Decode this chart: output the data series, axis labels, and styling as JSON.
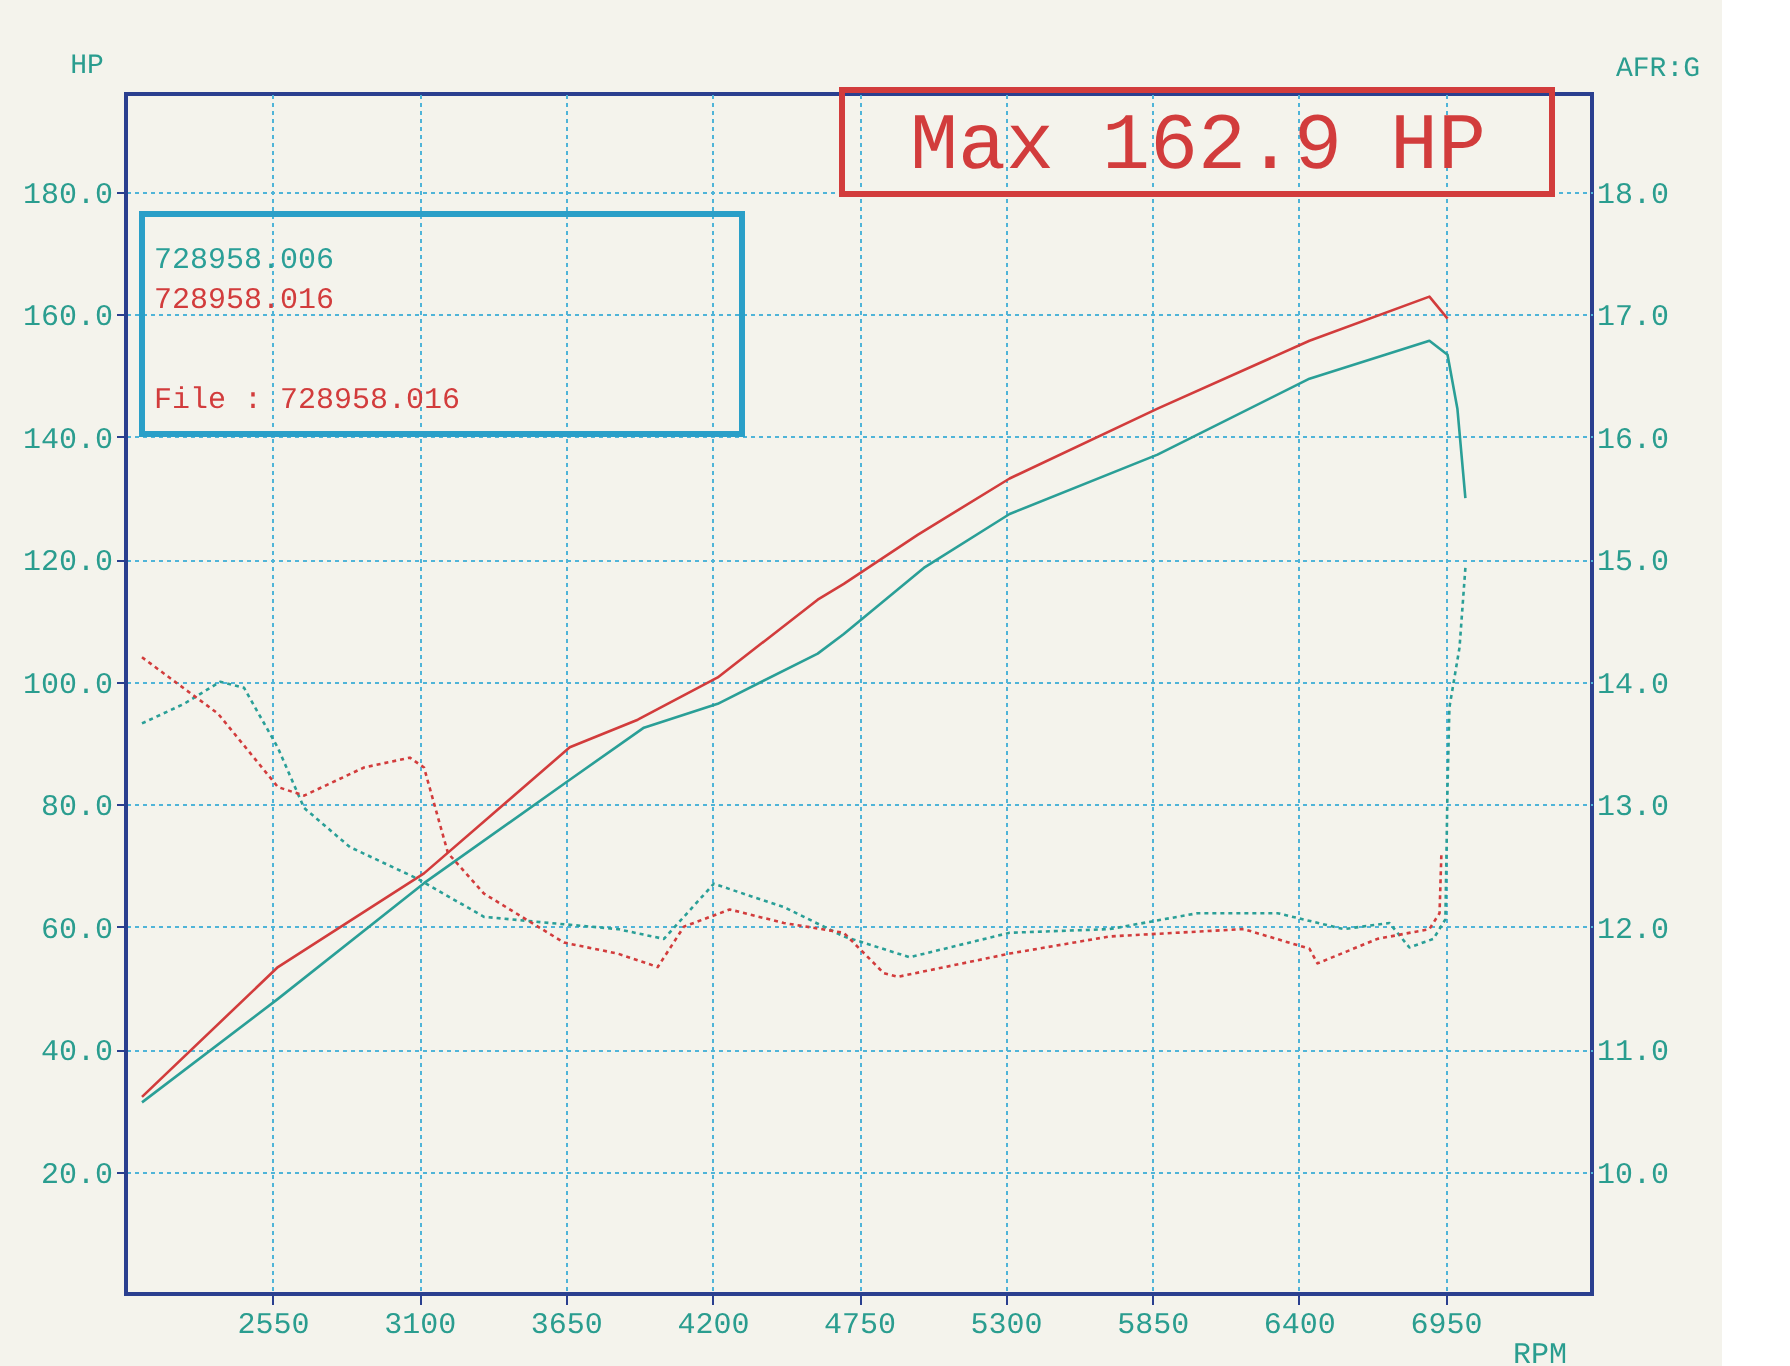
{
  "chart_data": {
    "type": "line",
    "xlabel": "RPM",
    "ylabel": "HP",
    "y2label": "AFR:G",
    "xlim": [
      2000,
      7500
    ],
    "xticks": [
      2550,
      3100,
      3650,
      4200,
      4750,
      5300,
      5850,
      6400,
      6950
    ],
    "ylim": [
      0,
      196
    ],
    "yticks": [
      {
        "value": 20,
        "label": "20.0"
      },
      {
        "value": 40,
        "label": "40.0"
      },
      {
        "value": 60,
        "label": "60.0"
      },
      {
        "value": 80,
        "label": "80.0"
      },
      {
        "value": 100,
        "label": "100.0"
      },
      {
        "value": 120,
        "label": "120.0"
      },
      {
        "value": 140,
        "label": "140.0"
      },
      {
        "value": 160,
        "label": "160.0"
      },
      {
        "value": 180,
        "label": "180.0"
      }
    ],
    "y2lim": [
      9,
      18.8
    ],
    "y2ticks": [
      {
        "value": 10,
        "label": "10.0"
      },
      {
        "value": 11,
        "label": "11.0"
      },
      {
        "value": 12,
        "label": "12.0"
      },
      {
        "value": 13,
        "label": "13.0"
      },
      {
        "value": 14,
        "label": "14.0"
      },
      {
        "value": 15,
        "label": "15.0"
      },
      {
        "value": 16,
        "label": "16.0"
      },
      {
        "value": 17,
        "label": "17.0"
      },
      {
        "value": 18,
        "label": "18.0"
      }
    ],
    "grid": true,
    "legend": "top left",
    "marker": "none",
    "annotations": [
      "Max 162.9 HP",
      "File      : 728958.016"
    ],
    "series": [
      {
        "name": "728958.006",
        "color": "#2a9f97",
        "line_style": "solid",
        "x": [
          2060,
          2570,
          3118,
          3665,
          3943,
          4220,
          4595,
          4693,
          4993,
          5315,
          5870,
          6440,
          6890,
          6958,
          6995,
          7025
        ],
        "values": [
          31.3,
          48.2,
          67.1,
          84,
          92.5,
          96.4,
          104.6,
          107.8,
          118.6,
          127.4,
          137.1,
          149.5,
          155.7,
          153.4,
          144.6,
          130
        ]
      },
      {
        "name": "728958.016",
        "color": "#d23c3c",
        "line_style": "solid",
        "x": [
          2060,
          2570,
          3118,
          3665,
          3920,
          4220,
          4595,
          4693,
          4970,
          5315,
          5870,
          6440,
          6890,
          6958
        ],
        "values": [
          32.2,
          53.4,
          68.7,
          89.3,
          93.8,
          100.7,
          113.4,
          116,
          124,
          133.2,
          144.6,
          155.7,
          162.9,
          159.3
        ]
      },
      {
        "color": "#2a9f97",
        "line_style": "dotted",
        "axis": "y2",
        "x": [
          2060,
          2218,
          2353,
          2443,
          2570,
          2668,
          2840,
          3095,
          3343,
          3590,
          3845,
          4018,
          4205,
          4468,
          4693,
          4940,
          5315,
          5690,
          6020,
          6320,
          6568,
          6740,
          6815,
          6905,
          6950,
          6958,
          6965,
          7003,
          7025
        ],
        "values": [
          13.66,
          13.82,
          14.0,
          13.95,
          13.46,
          12.97,
          12.65,
          12.39,
          12.08,
          12.03,
          11.98,
          11.9,
          12.35,
          12.16,
          11.92,
          11.75,
          11.95,
          11.98,
          12.11,
          12.11,
          11.98,
          12.03,
          11.83,
          11.9,
          12.06,
          13.14,
          13.79,
          14.28,
          14.93
        ]
      },
      {
        "color": "#d23c3c",
        "line_style": "dotted",
        "axis": "y2",
        "x": [
          2060,
          2345,
          2570,
          2668,
          2893,
          3065,
          3118,
          3208,
          3343,
          3643,
          3845,
          3995,
          4093,
          4265,
          4468,
          4693,
          4843,
          4895,
          5315,
          5690,
          6193,
          6440,
          6470,
          6695,
          6890,
          6928,
          6935
        ],
        "values": [
          14.2,
          13.74,
          13.14,
          13.07,
          13.3,
          13.38,
          13.3,
          12.6,
          12.27,
          11.87,
          11.78,
          11.67,
          12.0,
          12.14,
          12.03,
          11.95,
          11.62,
          11.59,
          11.78,
          11.92,
          11.98,
          11.82,
          11.7,
          11.9,
          11.98,
          12.11,
          12.6
        ]
      }
    ]
  }
}
